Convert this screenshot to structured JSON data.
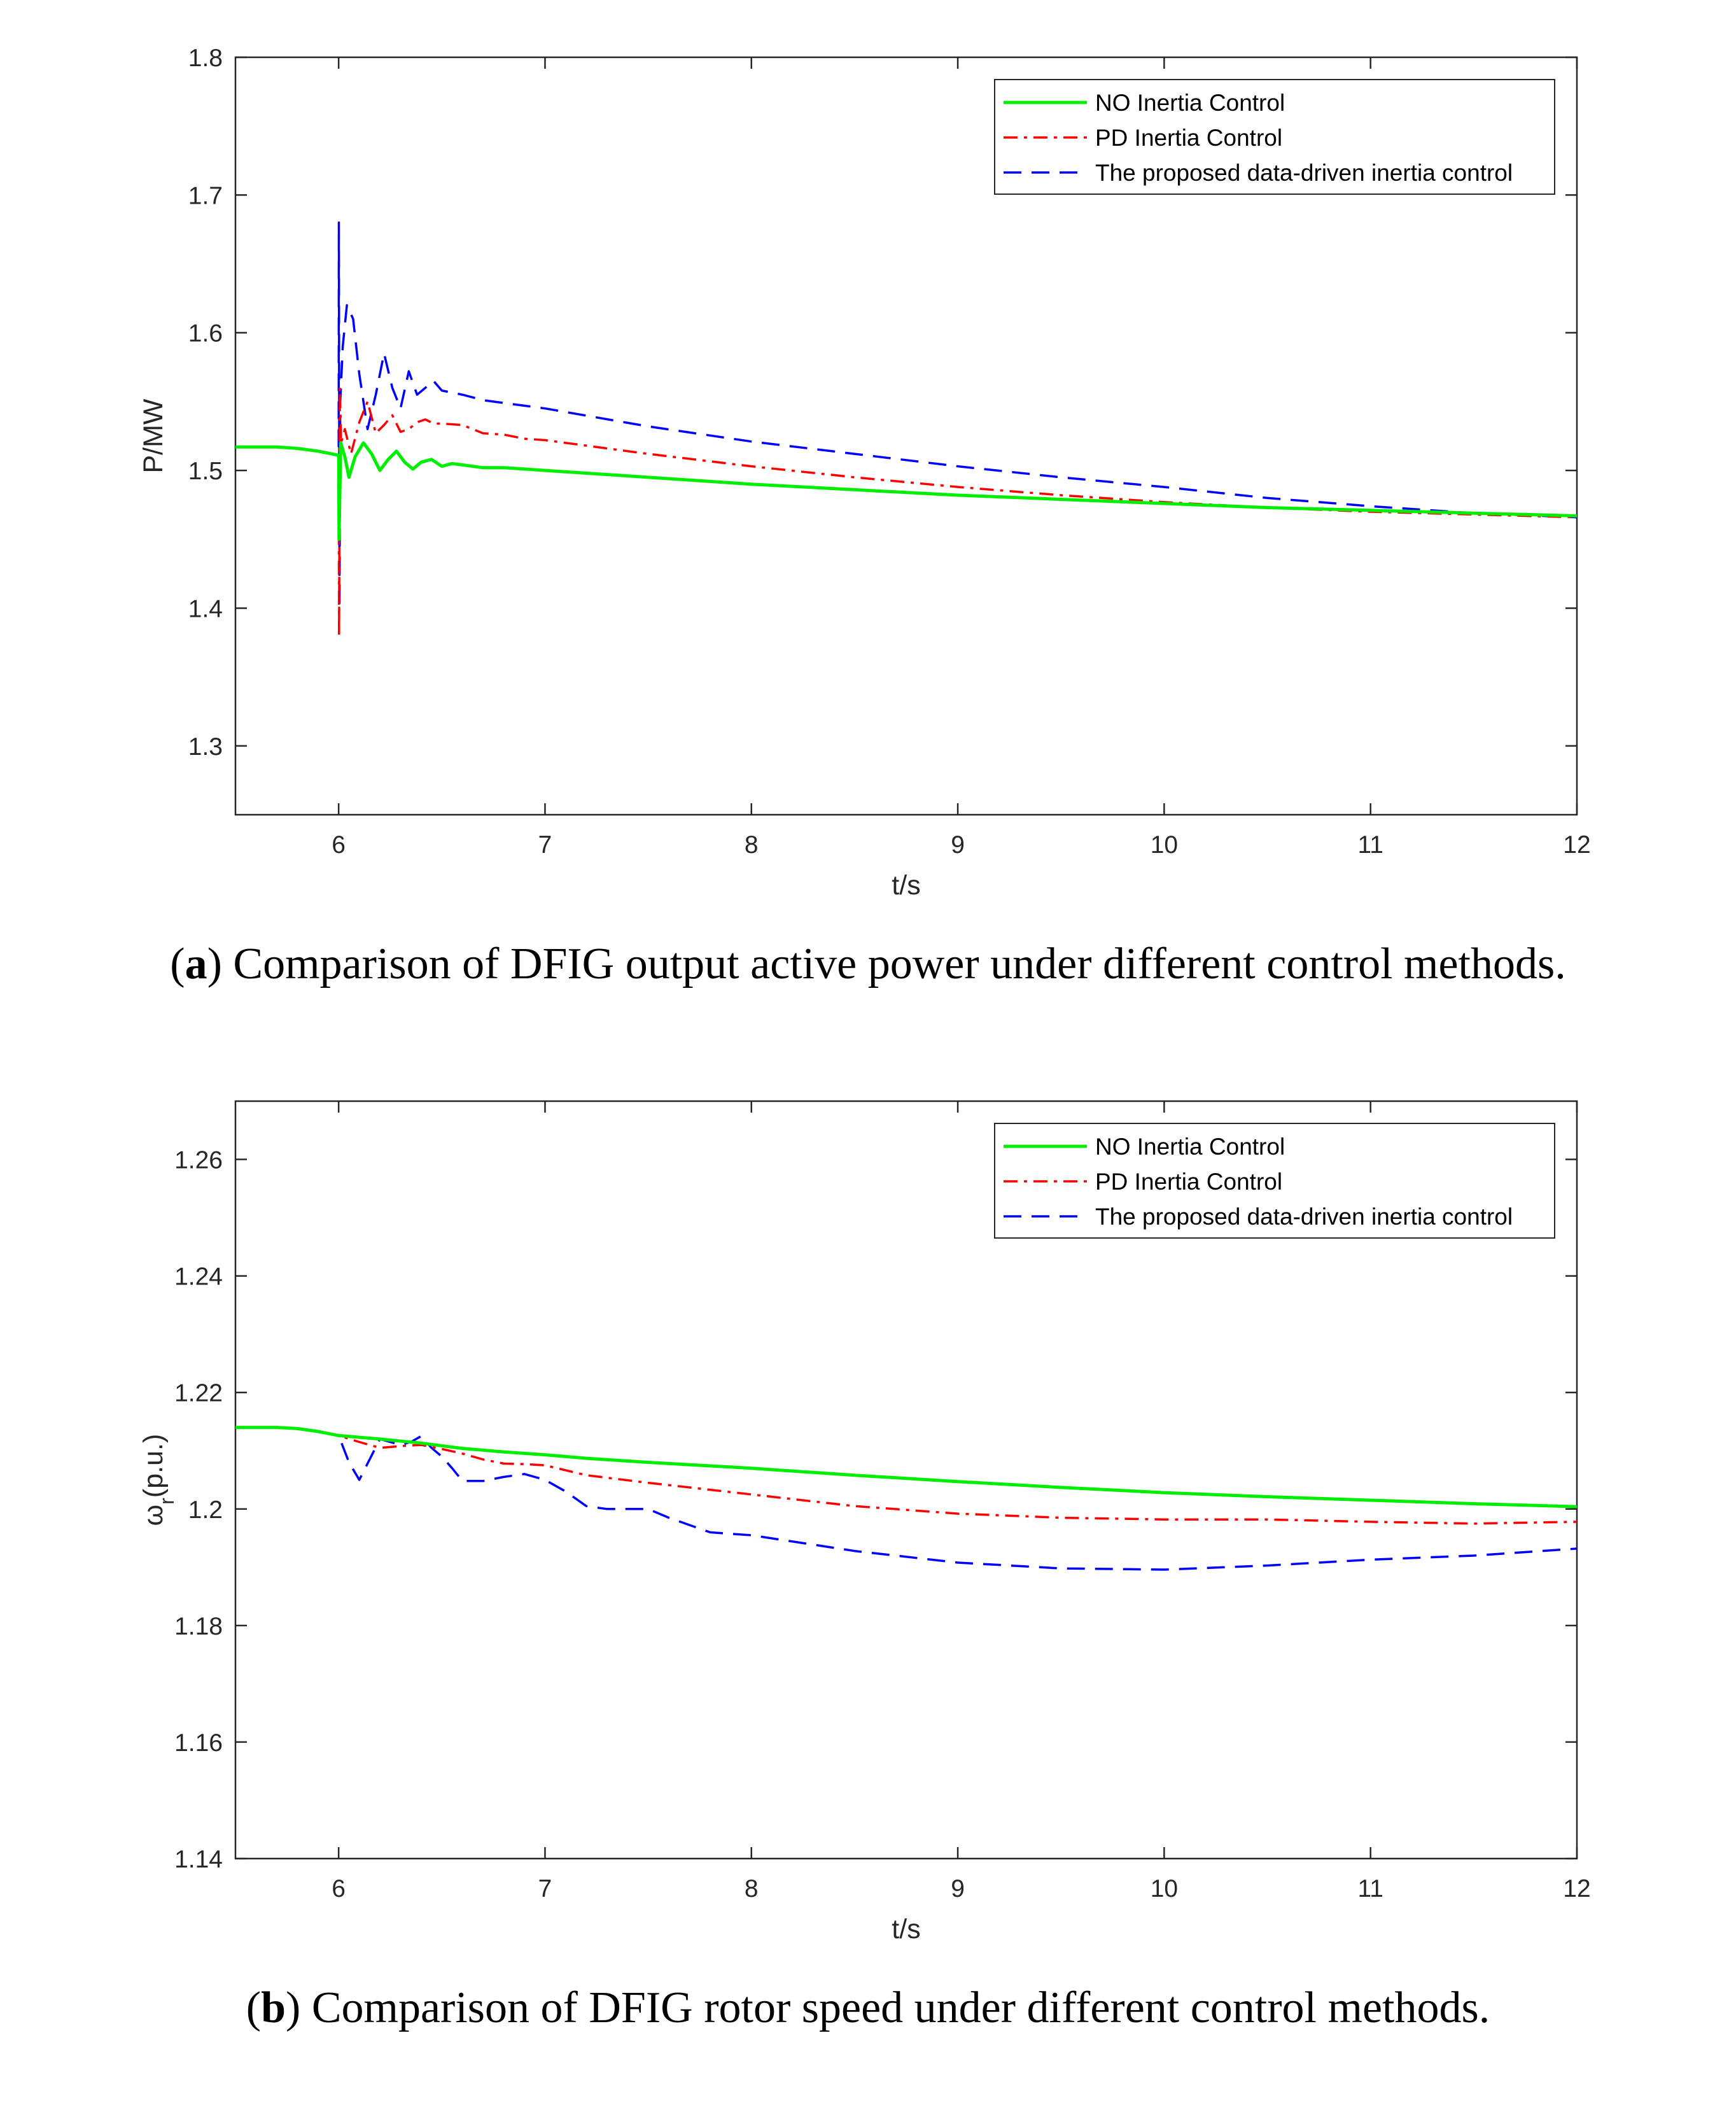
{
  "colors": {
    "no": "#00ee00",
    "pd": "#ff0000",
    "prop": "#0000ff",
    "axis": "#262626"
  },
  "captions": [
    {
      "letter": "a",
      "text": " Comparison of DFIG output active power under different control methods."
    },
    {
      "letter": "b",
      "text": " Comparison of DFIG rotor speed under different control methods."
    }
  ],
  "chart_data": [
    {
      "type": "line",
      "title": "",
      "xlabel": "t/s",
      "ylabel": "P/MW",
      "xlim": [
        5.5,
        12
      ],
      "ylim": [
        1.25,
        1.8
      ],
      "xticks": [
        6,
        7,
        8,
        9,
        10,
        11,
        12
      ],
      "yticks": [
        1.3,
        1.4,
        1.5,
        1.6,
        1.7,
        1.8
      ],
      "xtick_labels": [
        "6",
        "7",
        "8",
        "9",
        "10",
        "11",
        "12"
      ],
      "ytick_labels": [
        "1.3",
        "1.4",
        "1.5",
        "1.6",
        "1.7",
        "1.8"
      ],
      "legend_position": "top-right",
      "series": [
        {
          "name": "NO Inertia Control",
          "style": "solid",
          "x": [
            5.5,
            5.6,
            5.7,
            5.8,
            5.9,
            6.0,
            6.002,
            6.01,
            6.03,
            6.05,
            6.08,
            6.12,
            6.16,
            6.2,
            6.24,
            6.28,
            6.32,
            6.36,
            6.4,
            6.45,
            6.5,
            6.55,
            6.6,
            6.7,
            6.8,
            6.9,
            7.0,
            7.5,
            8.0,
            8.5,
            9.0,
            9.5,
            10.0,
            10.5,
            11.0,
            11.5,
            12.0
          ],
          "y": [
            1.517,
            1.517,
            1.517,
            1.516,
            1.514,
            1.511,
            1.45,
            1.52,
            1.51,
            1.495,
            1.51,
            1.52,
            1.512,
            1.5,
            1.508,
            1.514,
            1.506,
            1.501,
            1.506,
            1.508,
            1.503,
            1.505,
            1.504,
            1.502,
            1.502,
            1.501,
            1.5,
            1.495,
            1.49,
            1.486,
            1.482,
            1.479,
            1.476,
            1.473,
            1.471,
            1.469,
            1.467
          ]
        },
        {
          "name": "PD Inertia Control",
          "style": "dashdot",
          "x": [
            5.5,
            5.6,
            5.7,
            5.8,
            5.9,
            6.0,
            6.002,
            6.006,
            6.012,
            6.03,
            6.06,
            6.1,
            6.14,
            6.18,
            6.22,
            6.26,
            6.3,
            6.34,
            6.38,
            6.42,
            6.46,
            6.5,
            6.6,
            6.7,
            6.8,
            6.9,
            7.0,
            7.5,
            8.0,
            8.5,
            9.0,
            9.5,
            10.0,
            10.5,
            11.0,
            11.5,
            12.0
          ],
          "y": [
            1.517,
            1.517,
            1.517,
            1.516,
            1.514,
            1.511,
            1.38,
            1.56,
            1.52,
            1.53,
            1.512,
            1.535,
            1.55,
            1.527,
            1.533,
            1.54,
            1.528,
            1.53,
            1.535,
            1.537,
            1.534,
            1.534,
            1.533,
            1.527,
            1.526,
            1.523,
            1.522,
            1.512,
            1.503,
            1.495,
            1.488,
            1.482,
            1.477,
            1.473,
            1.47,
            1.468,
            1.466
          ]
        },
        {
          "name": "The proposed data-driven inertia control",
          "style": "dashed",
          "x": [
            5.5,
            5.6,
            5.7,
            5.8,
            5.9,
            6.0,
            6.001,
            6.004,
            6.008,
            6.02,
            6.04,
            6.07,
            6.1,
            6.14,
            6.18,
            6.22,
            6.26,
            6.3,
            6.34,
            6.38,
            6.42,
            6.46,
            6.5,
            6.6,
            6.7,
            6.8,
            6.9,
            7.0,
            7.5,
            8.0,
            8.5,
            9.0,
            9.5,
            10.0,
            10.5,
            11.0,
            11.5,
            12.0
          ],
          "y": [
            1.517,
            1.517,
            1.517,
            1.516,
            1.514,
            1.511,
            1.68,
            1.4,
            1.55,
            1.59,
            1.62,
            1.61,
            1.57,
            1.53,
            1.555,
            1.585,
            1.56,
            1.545,
            1.572,
            1.555,
            1.56,
            1.565,
            1.558,
            1.555,
            1.551,
            1.549,
            1.547,
            1.545,
            1.532,
            1.521,
            1.512,
            1.503,
            1.495,
            1.488,
            1.48,
            1.474,
            1.469,
            1.466
          ]
        }
      ]
    },
    {
      "type": "line",
      "title": "",
      "xlabel": "t/s",
      "ylabel": "ω",
      "ylabel_subscript": "r",
      "ylabel_suffix": "(p.u.)",
      "xlim": [
        5.5,
        12
      ],
      "ylim": [
        1.14,
        1.27
      ],
      "xticks": [
        6,
        7,
        8,
        9,
        10,
        11,
        12
      ],
      "yticks": [
        1.14,
        1.16,
        1.18,
        1.2,
        1.22,
        1.24,
        1.26
      ],
      "xtick_labels": [
        "6",
        "7",
        "8",
        "9",
        "10",
        "11",
        "12"
      ],
      "ytick_labels": [
        "1.14",
        "1.16",
        "1.18",
        "1.2",
        "1.22",
        "1.24",
        "1.26"
      ],
      "legend_position": "top-right",
      "series": [
        {
          "name": "NO Inertia Control",
          "style": "solid",
          "x": [
            5.5,
            5.6,
            5.7,
            5.8,
            5.9,
            6.0,
            6.2,
            6.4,
            6.6,
            6.8,
            7.0,
            7.2,
            7.5,
            8.0,
            8.5,
            9.0,
            9.5,
            10.0,
            10.5,
            11.0,
            11.5,
            12.0
          ],
          "y": [
            1.214,
            1.214,
            1.214,
            1.2138,
            1.2133,
            1.2126,
            1.212,
            1.2113,
            1.2104,
            1.2098,
            1.2093,
            1.2087,
            1.208,
            1.207,
            1.2058,
            1.2047,
            1.2037,
            1.2028,
            1.2021,
            1.2015,
            1.2009,
            1.2004
          ]
        },
        {
          "name": "PD Inertia Control",
          "style": "dashdot",
          "x": [
            5.5,
            5.6,
            5.7,
            5.8,
            5.9,
            6.0,
            6.1,
            6.2,
            6.3,
            6.4,
            6.5,
            6.6,
            6.7,
            6.8,
            6.9,
            7.0,
            7.2,
            7.5,
            8.0,
            8.5,
            9.0,
            9.5,
            10.0,
            10.5,
            11.0,
            11.5,
            12.0
          ],
          "y": [
            1.214,
            1.214,
            1.214,
            1.2138,
            1.2133,
            1.2126,
            1.2115,
            1.2105,
            1.2108,
            1.211,
            1.2103,
            1.2095,
            1.2085,
            1.2078,
            1.2077,
            1.2075,
            1.2058,
            1.2045,
            1.2025,
            1.2005,
            1.1992,
            1.1985,
            1.1982,
            1.1982,
            1.1978,
            1.1975,
            1.1978
          ]
        },
        {
          "name": "The proposed data-driven inertia control",
          "style": "dashed",
          "x": [
            5.5,
            5.6,
            5.7,
            5.8,
            5.9,
            6.0,
            6.05,
            6.1,
            6.15,
            6.2,
            6.25,
            6.3,
            6.35,
            6.4,
            6.45,
            6.5,
            6.55,
            6.6,
            6.7,
            6.8,
            6.9,
            7.0,
            7.1,
            7.2,
            7.3,
            7.5,
            7.6,
            7.8,
            8.0,
            8.5,
            9.0,
            9.5,
            10.0,
            10.5,
            11.0,
            11.5,
            12.0
          ],
          "y": [
            1.214,
            1.214,
            1.214,
            1.2138,
            1.2133,
            1.2126,
            1.208,
            1.205,
            1.2085,
            1.212,
            1.2115,
            1.211,
            1.2115,
            1.2125,
            1.2105,
            1.209,
            1.207,
            1.2048,
            1.2048,
            1.2055,
            1.206,
            1.205,
            1.203,
            1.2005,
            1.2,
            1.2,
            1.1985,
            1.196,
            1.1955,
            1.1928,
            1.1908,
            1.1898,
            1.1896,
            1.1903,
            1.1913,
            1.192,
            1.1932
          ]
        }
      ]
    }
  ]
}
